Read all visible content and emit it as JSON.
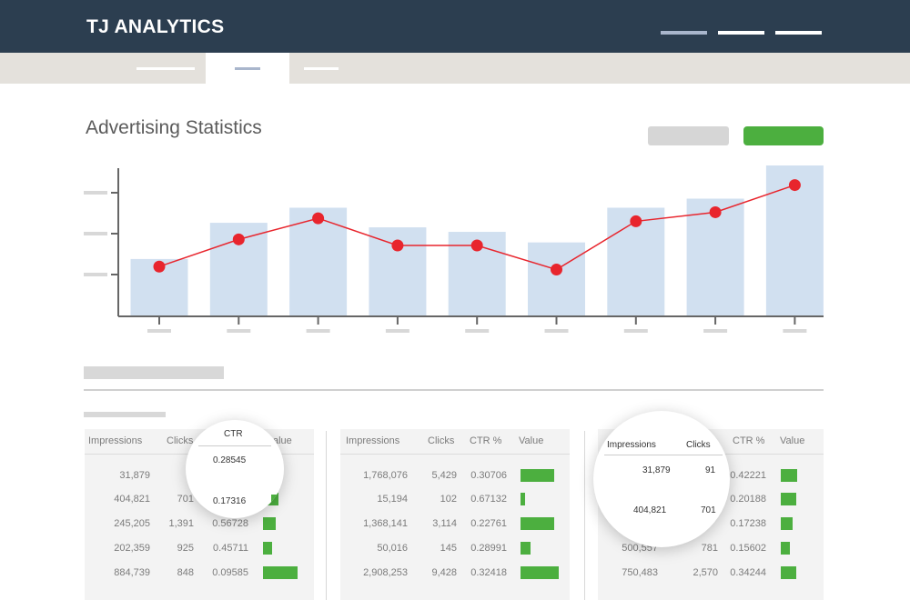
{
  "header": {
    "logo_text": "TJ ANALYTICS"
  },
  "page": {
    "title": "Advertising Statistics"
  },
  "colors": {
    "header_bg": "#2c3e50",
    "tab_bg": "#e4e1dc",
    "accent_green": "#4caf3f",
    "bar_fill": "#d1e0f0",
    "line_red": "#e8252d"
  },
  "chart_data": {
    "type": "bar",
    "bars": [
      0.38,
      0.62,
      0.72,
      0.59,
      0.56,
      0.49,
      0.72,
      0.78,
      1.0
    ],
    "line": [
      0.33,
      0.51,
      0.65,
      0.47,
      0.47,
      0.31,
      0.63,
      0.69,
      0.87
    ],
    "ylim": [
      0,
      1
    ],
    "grid": false,
    "legend": "none"
  },
  "tables": {
    "headers": {
      "impressions": "Impressions",
      "clicks": "Clicks",
      "ctr": "CTR %",
      "value": "Value"
    },
    "panel1": {
      "rows": [
        {
          "impressions": "31,879",
          "clicks": "",
          "ctr": "",
          "value": 0
        },
        {
          "impressions": "404,821",
          "clicks": "701",
          "ctr": "",
          "value": 0.45
        },
        {
          "impressions": "245,205",
          "clicks": "1,391",
          "ctr": "0.56728",
          "value": 0.38
        },
        {
          "impressions": "202,359",
          "clicks": "925",
          "ctr": "0.45711",
          "value": 0.26
        },
        {
          "impressions": "884,739",
          "clicks": "848",
          "ctr": "0.09585",
          "value": 1.0
        }
      ],
      "magnifier": {
        "header": "CTR",
        "values": [
          "0.28545",
          "0.17316"
        ]
      },
      "value_header_partial": "alue"
    },
    "panel2": {
      "rows": [
        {
          "impressions": "1,768,076",
          "clicks": "5,429",
          "ctr": "0.30706",
          "value": 0.88
        },
        {
          "impressions": "15,194",
          "clicks": "102",
          "ctr": "0.67132",
          "value": 0.13
        },
        {
          "impressions": "1,368,141",
          "clicks": "3,114",
          "ctr": "0.22761",
          "value": 0.88
        },
        {
          "impressions": "50,016",
          "clicks": "145",
          "ctr": "0.28991",
          "value": 0.25
        },
        {
          "impressions": "2,908,253",
          "clicks": "9,428",
          "ctr": "0.32418",
          "value": 1.0
        }
      ]
    },
    "panel3": {
      "rows": [
        {
          "impressions": "",
          "clicks": "",
          "ctr": "0.42221",
          "value": 0.66
        },
        {
          "impressions": "",
          "clicks": "",
          "ctr": "0.20188",
          "value": 0.6
        },
        {
          "impressions": "",
          "clicks": "",
          "ctr": "0.17238",
          "value": 0.48
        },
        {
          "impressions": "500,557",
          "clicks": "781",
          "ctr": "0.15602",
          "value": 0.36
        },
        {
          "impressions": "750,483",
          "clicks": "2,570",
          "ctr": "0.34244",
          "value": 0.62
        }
      ],
      "magnifier": {
        "headers": {
          "impressions": "Impressions",
          "clicks": "Clicks"
        },
        "rows": [
          {
            "impressions": "31,879",
            "clicks": "91"
          },
          {
            "impressions": "404,821",
            "clicks": "701"
          }
        ]
      }
    }
  }
}
